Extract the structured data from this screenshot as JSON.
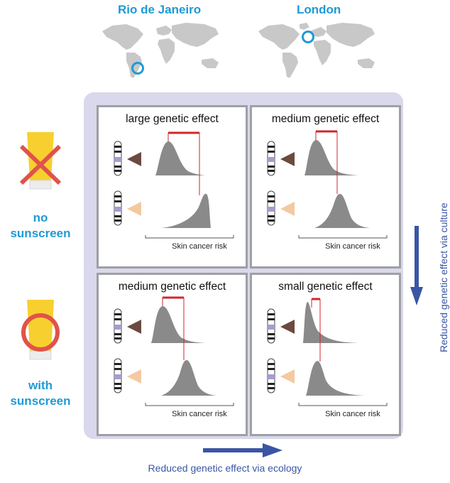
{
  "cities": {
    "left": "Rio de Janeiro",
    "right": "London"
  },
  "rows": {
    "top": [
      "no",
      "sunscreen"
    ],
    "bottom": [
      "with",
      "sunscreen"
    ]
  },
  "cells": [
    {
      "title": "large genetic effect",
      "axis": "Skin cancer risk"
    },
    {
      "title": "medium genetic effect",
      "axis": "Skin cancer risk"
    },
    {
      "title": "medium genetic effect",
      "axis": "Skin cancer risk"
    },
    {
      "title": "small genetic effect",
      "axis": "Skin cancer risk"
    }
  ],
  "arrows": {
    "culture": "Reduced genetic effect via culture",
    "ecology": "Reduced genetic effect via ecology"
  },
  "colors": {
    "city_blue": "#1e9ad6",
    "arrow_blue": "#3a55a4",
    "panel_lavender": "#d9d8ec",
    "curve_gray": "#8a8a8a",
    "effect_red": "#d1262b",
    "dark_triangle": "#6b4a3f",
    "light_triangle": "#f3c9a0",
    "tube_yellow": "#f7d02f",
    "cross_red": "#e0534a",
    "map_gray": "#c8c8c8"
  }
}
